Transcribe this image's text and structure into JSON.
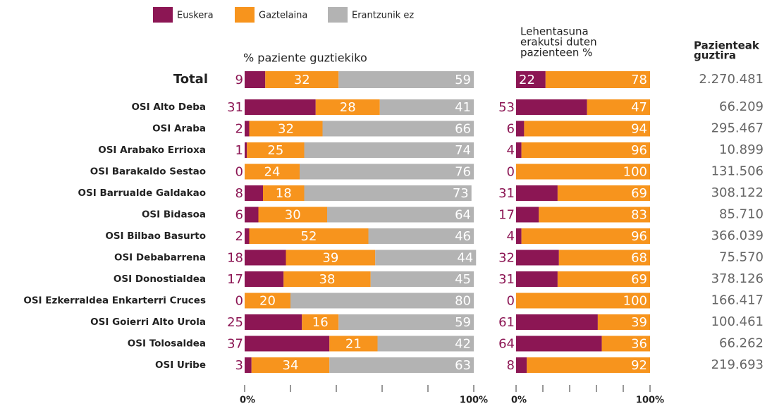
{
  "chart_data": [
    {
      "type": "bar",
      "stacked": true,
      "orientation": "horizontal",
      "title": "% paziente guztiekiko",
      "categories": [
        "Total",
        "OSI Alto Deba",
        "OSI Araba",
        "OSI Arabako Errioxa",
        "OSI Barakaldo Sestao",
        "OSI Barrualde Galdakao",
        "OSI Bidasoa",
        "OSI Bilbao Basurto",
        "OSI Debabarrena",
        "OSI Donostialdea",
        "OSI Ezkerraldea Enkarterri Cruces",
        "OSI Goierri Alto Urola",
        "OSI Tolosaldea",
        "OSI Uribe"
      ],
      "series": [
        {
          "name": "Euskera",
          "color": "#8c1654",
          "values": [
            9,
            31,
            2,
            1,
            0,
            8,
            6,
            2,
            18,
            17,
            0,
            25,
            37,
            3
          ]
        },
        {
          "name": "Gaztelaina",
          "color": "#f7941d",
          "values": [
            32,
            28,
            32,
            25,
            24,
            18,
            30,
            52,
            39,
            38,
            20,
            16,
            21,
            34
          ]
        },
        {
          "name": "Erantzunik ez",
          "color": "#b3b3b3",
          "values": [
            59,
            41,
            66,
            74,
            76,
            73,
            64,
            46,
            44,
            45,
            80,
            59,
            42,
            63
          ]
        }
      ],
      "xlim": [
        0,
        100
      ],
      "xticks": [
        {
          "value": 0,
          "label": "0%"
        },
        {
          "value": 20,
          "label": null
        },
        {
          "value": 40,
          "label": null
        },
        {
          "value": 60,
          "label": null
        },
        {
          "value": 80,
          "label": null
        },
        {
          "value": 100,
          "label": "100%"
        }
      ]
    },
    {
      "type": "bar",
      "stacked": true,
      "orientation": "horizontal",
      "title": [
        "Lehentasuna",
        "erakutsi duten",
        "pazienteen %"
      ],
      "series": [
        {
          "color": "#8c1654",
          "values": [
            22,
            53,
            6,
            4,
            0,
            31,
            17,
            4,
            32,
            31,
            0,
            61,
            64,
            8
          ]
        },
        {
          "color": "#f7941d",
          "values": [
            78,
            47,
            94,
            96,
            100,
            69,
            83,
            96,
            68,
            69,
            100,
            39,
            36,
            92
          ]
        }
      ],
      "xlim": [
        0,
        100
      ],
      "xticks": [
        {
          "value": 0,
          "label": "0%"
        },
        {
          "value": 20,
          "label": null
        },
        {
          "value": 40,
          "label": null
        },
        {
          "value": 60,
          "label": null
        },
        {
          "value": 80,
          "label": null
        },
        {
          "value": 100,
          "label": "100%"
        }
      ]
    }
  ],
  "totals": {
    "header": [
      "Pazienteak",
      "guztira"
    ],
    "cells": [
      "2.270.481",
      "66.209",
      "295.467",
      "10.899",
      "131.506",
      "308.122",
      "85.710",
      "366.039",
      "75.570",
      "378.126",
      "166.417",
      "100.461",
      "66.262",
      "219.693"
    ]
  }
}
